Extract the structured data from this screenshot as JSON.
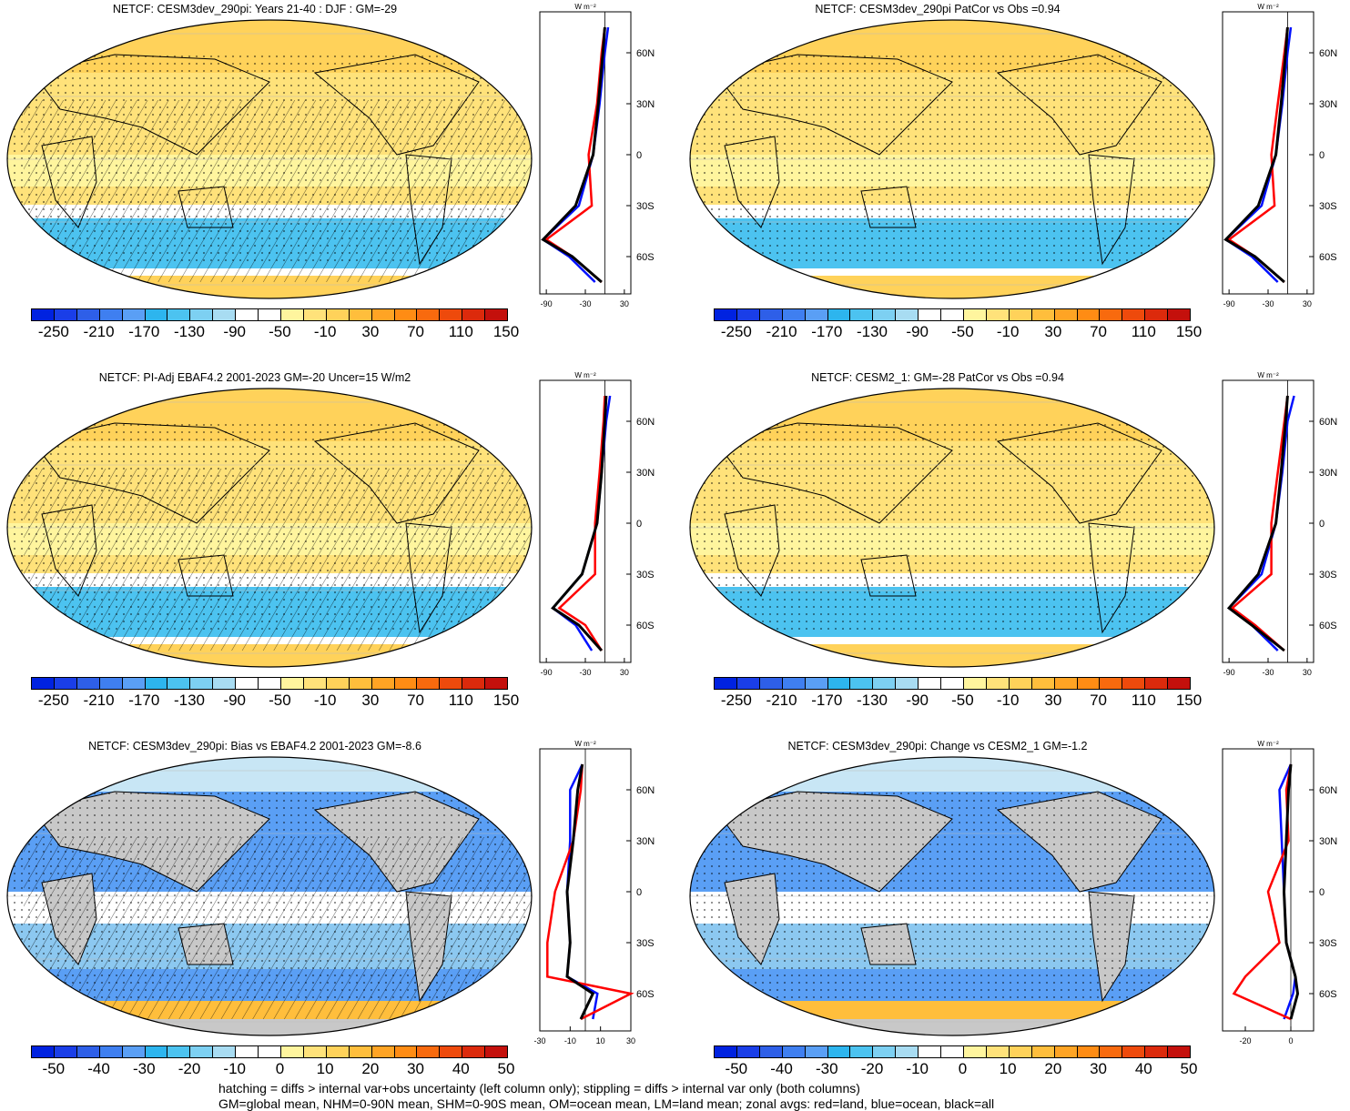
{
  "panels": [
    {
      "title": "NETCF: CESM3dev_290pi: Years 21-40 : DJF : GM=-29",
      "palette": "abs",
      "hatch": true,
      "yticks": [
        "60N",
        "30N",
        "0",
        "30S",
        "60S"
      ],
      "xticks": [
        "-90",
        "-30",
        "30"
      ]
    },
    {
      "title": "NETCF: CESM3dev_290pi PatCor vs Obs =0.94",
      "palette": "abs",
      "hatch": false,
      "yticks": [
        "60N",
        "30N",
        "0",
        "30S",
        "60S"
      ],
      "xticks": [
        "-90",
        "-30",
        "30"
      ]
    },
    {
      "title": "NETCF: PI-Adj EBAF4.2 2001-2023 GM=-20 Uncer=15 W/m2",
      "palette": "abs",
      "hatch": true,
      "yticks": [
        "60N",
        "30N",
        "0",
        "30S",
        "60S"
      ],
      "xticks": [
        "-90",
        "-30",
        "30"
      ]
    },
    {
      "title": "NETCF: CESM2_1: GM=-28 PatCor vs Obs =0.94",
      "palette": "abs",
      "hatch": false,
      "yticks": [
        "60N",
        "30N",
        "0",
        "30S",
        "60S"
      ],
      "xticks": [
        "-90",
        "-30",
        "30"
      ]
    },
    {
      "title": "NETCF: CESM3dev_290pi: Bias vs EBAF4.2 2001-2023 GM=-8.6",
      "palette": "diff",
      "hatch": true,
      "yticks": [
        "60N",
        "30N",
        "0",
        "30S",
        "60S"
      ],
      "xticks": [
        "-30",
        "-10",
        "10",
        "30"
      ]
    },
    {
      "title": "NETCF: CESM3dev_290pi: Change vs CESM2_1 GM=-1.2",
      "palette": "diff",
      "hatch": false,
      "yticks": [
        "60N",
        "30N",
        "0",
        "30S",
        "60S"
      ],
      "xticks": [
        "-20",
        "0"
      ]
    }
  ],
  "zonal_unit": "W m⁻²",
  "colorbars": {
    "abs": {
      "labels": [
        "-250",
        "-210",
        "-170",
        "-130",
        "-90",
        "-50",
        "-10",
        "30",
        "70",
        "110",
        "150"
      ]
    },
    "diff": {
      "labels": [
        "-50",
        "-40",
        "-30",
        "-20",
        "-10",
        "0",
        "10",
        "20",
        "30",
        "40",
        "50"
      ]
    }
  },
  "colors": {
    "scale": [
      "#0022e0",
      "#1a3ee8",
      "#2e5fe8",
      "#3f7ff0",
      "#5a9ff5",
      "#2db5ee",
      "#4cc3f0",
      "#7dd0f2",
      "#a8dcf2",
      "#ffffff",
      "#ffffff",
      "#fff59e",
      "#ffe27a",
      "#ffd25a",
      "#ffbe3c",
      "#ffa424",
      "#ff8c14",
      "#f86a0e",
      "#ee4a0c",
      "#dc2a0c",
      "#c4100c"
    ],
    "land": "#c8c8c8",
    "ocean_series": "#0010ff",
    "land_series": "#ff0000",
    "all_series": "#000000"
  },
  "footnote_line1": "hatching = diffs > internal var+obs uncertainty (left column only); stippling = diffs > internal var only (both columns)",
  "footnote_line2": "GM=global mean, NHM=0-90N mean, SHM=0-90S mean, OM=ocean mean, LM=land mean; zonal avgs: red=land, blue=ocean, black=all",
  "chart_data": [
    {
      "type": "heatmap",
      "title": "NETCF: CESM3dev_290pi: Years 21-40 : DJF : GM=-29",
      "colorbar_range": [
        -250,
        150
      ],
      "zonal_profile": {
        "lat": [
          75,
          60,
          30,
          0,
          -30,
          -50,
          -60,
          -75
        ],
        "series": [
          {
            "name": "all",
            "values": [
              0,
              -3,
              -10,
              -18,
              -45,
              -95,
              -50,
              -5
            ]
          },
          {
            "name": "ocean",
            "values": [
              5,
              0,
              -8,
              -18,
              -40,
              -95,
              -55,
              -15
            ]
          },
          {
            "name": "land",
            "values": [
              0,
              -5,
              -12,
              -25,
              -20,
              -90,
              -50,
              -5
            ]
          }
        ],
        "xlim": [
          -100,
          40
        ]
      }
    },
    {
      "type": "heatmap",
      "title": "NETCF: CESM3dev_290pi PatCor vs Obs =0.94",
      "colorbar_range": [
        -250,
        150
      ],
      "zonal_profile": {
        "lat": [
          75,
          60,
          30,
          0,
          -30,
          -50,
          -60,
          -75
        ],
        "series": [
          {
            "name": "all",
            "values": [
              0,
              -3,
              -10,
              -18,
              -45,
              -95,
              -50,
              -5
            ]
          },
          {
            "name": "ocean",
            "values": [
              5,
              0,
              -8,
              -18,
              -40,
              -95,
              -55,
              -15
            ]
          },
          {
            "name": "land",
            "values": [
              0,
              -5,
              -15,
              -25,
              -20,
              -90,
              -50,
              -5
            ]
          }
        ],
        "xlim": [
          -100,
          40
        ]
      }
    },
    {
      "type": "heatmap",
      "title": "NETCF: PI-Adj EBAF4.2 2001-2023 GM=-20 Uncer=15 W/m2",
      "colorbar_range": [
        -250,
        150
      ],
      "zonal_profile": {
        "lat": [
          75,
          60,
          30,
          0,
          -30,
          -50,
          -60,
          -75
        ],
        "series": [
          {
            "name": "all",
            "values": [
              2,
              0,
              -5,
              -12,
              -35,
              -80,
              -40,
              -5
            ]
          },
          {
            "name": "ocean",
            "values": [
              8,
              2,
              -5,
              -12,
              -35,
              -80,
              -45,
              -20
            ]
          },
          {
            "name": "land",
            "values": [
              0,
              -2,
              -8,
              -15,
              -15,
              -70,
              -30,
              -5
            ]
          }
        ],
        "xlim": [
          -100,
          40
        ]
      }
    },
    {
      "type": "heatmap",
      "title": "NETCF: CESM2_1: GM=-28 PatCor vs Obs =0.94",
      "colorbar_range": [
        -250,
        150
      ],
      "zonal_profile": {
        "lat": [
          75,
          60,
          30,
          0,
          -30,
          -50,
          -60,
          -75
        ],
        "series": [
          {
            "name": "all",
            "values": [
              0,
              -3,
              -10,
              -18,
              -45,
              -90,
              -55,
              -5
            ]
          },
          {
            "name": "ocean",
            "values": [
              10,
              0,
              -8,
              -18,
              -40,
              -90,
              -55,
              -15
            ]
          },
          {
            "name": "land",
            "values": [
              0,
              -5,
              -15,
              -25,
              -25,
              -85,
              -50,
              -5
            ]
          }
        ],
        "xlim": [
          -100,
          40
        ]
      }
    },
    {
      "type": "heatmap",
      "title": "NETCF: CESM3dev_290pi: Bias vs EBAF4.2 2001-2023 GM=-8.6",
      "colorbar_range": [
        -50,
        50
      ],
      "zonal_profile": {
        "lat": [
          75,
          60,
          30,
          0,
          -30,
          -50,
          -60,
          -75
        ],
        "series": [
          {
            "name": "all",
            "values": [
              -2,
              -5,
              -8,
              -12,
              -10,
              -12,
              5,
              -3
            ]
          },
          {
            "name": "ocean",
            "values": [
              -2,
              -10,
              -10,
              -12,
              -10,
              -12,
              8,
              5
            ]
          },
          {
            "name": "land",
            "values": [
              -2,
              -3,
              -8,
              -20,
              -25,
              -25,
              30,
              -3
            ]
          }
        ],
        "xlim": [
          -30,
          30
        ]
      }
    },
    {
      "type": "heatmap",
      "title": "NETCF: CESM3dev_290pi: Change vs CESM2_1 GM=-1.2",
      "colorbar_range": [
        -50,
        50
      ],
      "zonal_profile": {
        "lat": [
          75,
          60,
          30,
          0,
          -30,
          -50,
          -60,
          -75
        ],
        "series": [
          {
            "name": "all",
            "values": [
              0,
              -1,
              -2,
              -3,
              -2,
              2,
              3,
              0
            ]
          },
          {
            "name": "ocean",
            "values": [
              0,
              -5,
              -4,
              -3,
              -2,
              2,
              1,
              -3
            ]
          },
          {
            "name": "land",
            "values": [
              0,
              -2,
              -1,
              -10,
              -5,
              -20,
              -25,
              0
            ]
          }
        ],
        "xlim": [
          -30,
          10
        ]
      }
    }
  ]
}
